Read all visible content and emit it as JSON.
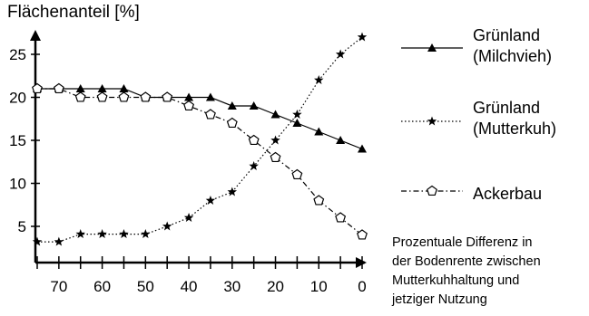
{
  "chart_data": {
    "type": "line",
    "ylabel": "Flächenanteil [%]",
    "xlabel_lines": [
      "Prozentuale Differenz in",
      "der Bodenrente zwischen",
      "Mutterkuhhaltung und",
      "jetziger Nutzung"
    ],
    "x_ticks": [
      70,
      60,
      50,
      40,
      30,
      20,
      10,
      0
    ],
    "y_ticks": [
      5,
      10,
      15,
      20,
      25
    ],
    "xlim": [
      75,
      -2
    ],
    "ylim": [
      0,
      28
    ],
    "legend_position": "right",
    "series": [
      {
        "name_lines": [
          "Grünland",
          "(Milchvieh)"
        ],
        "marker": "triangle",
        "line": "solid",
        "x": [
          75,
          70,
          65,
          60,
          55,
          50,
          45,
          40,
          35,
          30,
          25,
          20,
          15,
          10,
          5,
          0
        ],
        "y": [
          21,
          21,
          21,
          21,
          21,
          20,
          20,
          20,
          20,
          19,
          19,
          18,
          17,
          16,
          15,
          14
        ]
      },
      {
        "name_lines": [
          "Grünland",
          "(Mutterkuh)"
        ],
        "marker": "star",
        "line": "dotted",
        "x": [
          75,
          70,
          65,
          60,
          55,
          50,
          45,
          40,
          35,
          30,
          25,
          20,
          15,
          10,
          5,
          0
        ],
        "y": [
          3.2,
          3.2,
          4.1,
          4.1,
          4.1,
          4.1,
          5,
          6,
          8,
          9,
          12,
          15,
          18,
          22,
          25,
          27
        ]
      },
      {
        "name_lines": [
          "Ackerbau"
        ],
        "marker": "pentagon",
        "line": "dash-dot",
        "x": [
          75,
          70,
          65,
          60,
          55,
          50,
          45,
          40,
          35,
          30,
          25,
          20,
          15,
          10,
          5,
          0
        ],
        "y": [
          21,
          21,
          20,
          20,
          20,
          20,
          20,
          19,
          18,
          17,
          15,
          13,
          11,
          8,
          6,
          4
        ]
      }
    ]
  }
}
